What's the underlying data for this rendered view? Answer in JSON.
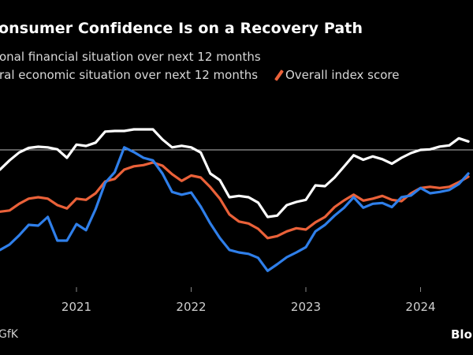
{
  "title": "onsumer Confidence Is on a Recovery Path",
  "legend": [
    {
      "label": "onal financial situation over next 12 months",
      "color": "#ffffff"
    },
    {
      "label": "ral economic situation over next 12 months",
      "color": "#2f7fea"
    },
    {
      "label": "Overall index score",
      "color": "#ea6139"
    }
  ],
  "source": "GfK",
  "brand": "Blo",
  "chart_data": {
    "type": "line",
    "title": "onsumer Confidence Is on a Recovery Path",
    "xlabel": "",
    "ylabel": "",
    "x_ticks": [
      "2021",
      "2022",
      "2023",
      "2024"
    ],
    "x": [
      "2020-05",
      "2020-06",
      "2020-07",
      "2020-08",
      "2020-09",
      "2020-10",
      "2020-11",
      "2020-12",
      "2021-01",
      "2021-02",
      "2021-03",
      "2021-04",
      "2021-05",
      "2021-06",
      "2021-07",
      "2021-08",
      "2021-09",
      "2021-10",
      "2021-11",
      "2021-12",
      "2022-01",
      "2022-02",
      "2022-03",
      "2022-04",
      "2022-05",
      "2022-06",
      "2022-07",
      "2022-08",
      "2022-09",
      "2022-10",
      "2022-11",
      "2022-12",
      "2023-01",
      "2023-02",
      "2023-03",
      "2023-04",
      "2023-05",
      "2023-06",
      "2023-07",
      "2023-08",
      "2023-09",
      "2023-10",
      "2023-11",
      "2023-12",
      "2024-01",
      "2024-02",
      "2024-03",
      "2024-04",
      "2024-05",
      "2024-06"
    ],
    "ylim": [
      -72,
      20
    ],
    "reference_line": 0,
    "grid": false,
    "legend_placement": "top-left",
    "series": [
      {
        "name": "onal financial situation over next 12 months",
        "color": "#ffffff",
        "values": [
          -10,
          -5.3,
          -1.3,
          1,
          1.6,
          1.3,
          0.3,
          -4,
          2.7,
          2,
          3.7,
          9.3,
          9.6,
          9.6,
          10.4,
          10.4,
          10.4,
          5.3,
          1.3,
          2.1,
          1.3,
          -1.3,
          -12,
          -15.3,
          -24,
          -23.3,
          -24,
          -26.7,
          -34,
          -33.3,
          -28,
          -26.4,
          -25.3,
          -18,
          -18.4,
          -14,
          -8.4,
          -2.7,
          -5,
          -3.3,
          -4.7,
          -7,
          -4,
          -1.6,
          0,
          0.3,
          1.7,
          2.3,
          5.9,
          4.3
        ]
      },
      {
        "name": "ral economic situation over next 12 months",
        "color": "#2f7fea",
        "values": [
          -50.7,
          -48,
          -43.3,
          -38,
          -38.4,
          -34,
          -46,
          -46,
          -37.6,
          -40.7,
          -30,
          -16.7,
          -11.3,
          1.3,
          -1.1,
          -4,
          -5.3,
          -12,
          -21.3,
          -22.7,
          -21.6,
          -28.7,
          -37.3,
          -44.7,
          -50.7,
          -52,
          -52.7,
          -54.7,
          -61.3,
          -58,
          -54.4,
          -52,
          -49.3,
          -41.3,
          -38,
          -33.3,
          -29.3,
          -24,
          -29.3,
          -27.3,
          -26.9,
          -29,
          -24,
          -23.1,
          -19.3,
          -22,
          -21.3,
          -20.3,
          -17.3,
          -12
        ]
      },
      {
        "name": "Overall index score",
        "color": "#ea6139",
        "values": [
          -31.3,
          -30.7,
          -27.3,
          -24.7,
          -24,
          -24.7,
          -28,
          -29.7,
          -24.7,
          -25.3,
          -22,
          -16,
          -14.7,
          -10,
          -8.3,
          -7.7,
          -6.4,
          -8,
          -12.3,
          -15.7,
          -13,
          -14,
          -18.9,
          -24.7,
          -32.7,
          -36.3,
          -37.3,
          -40,
          -44.7,
          -43.7,
          -41.3,
          -39.7,
          -40.4,
          -36.7,
          -34,
          -29,
          -25.6,
          -22.7,
          -25.7,
          -24.7,
          -23.3,
          -25.3,
          -26,
          -22,
          -19.3,
          -18.7,
          -19.3,
          -18.7,
          -16.4,
          -13.6
        ]
      }
    ]
  }
}
